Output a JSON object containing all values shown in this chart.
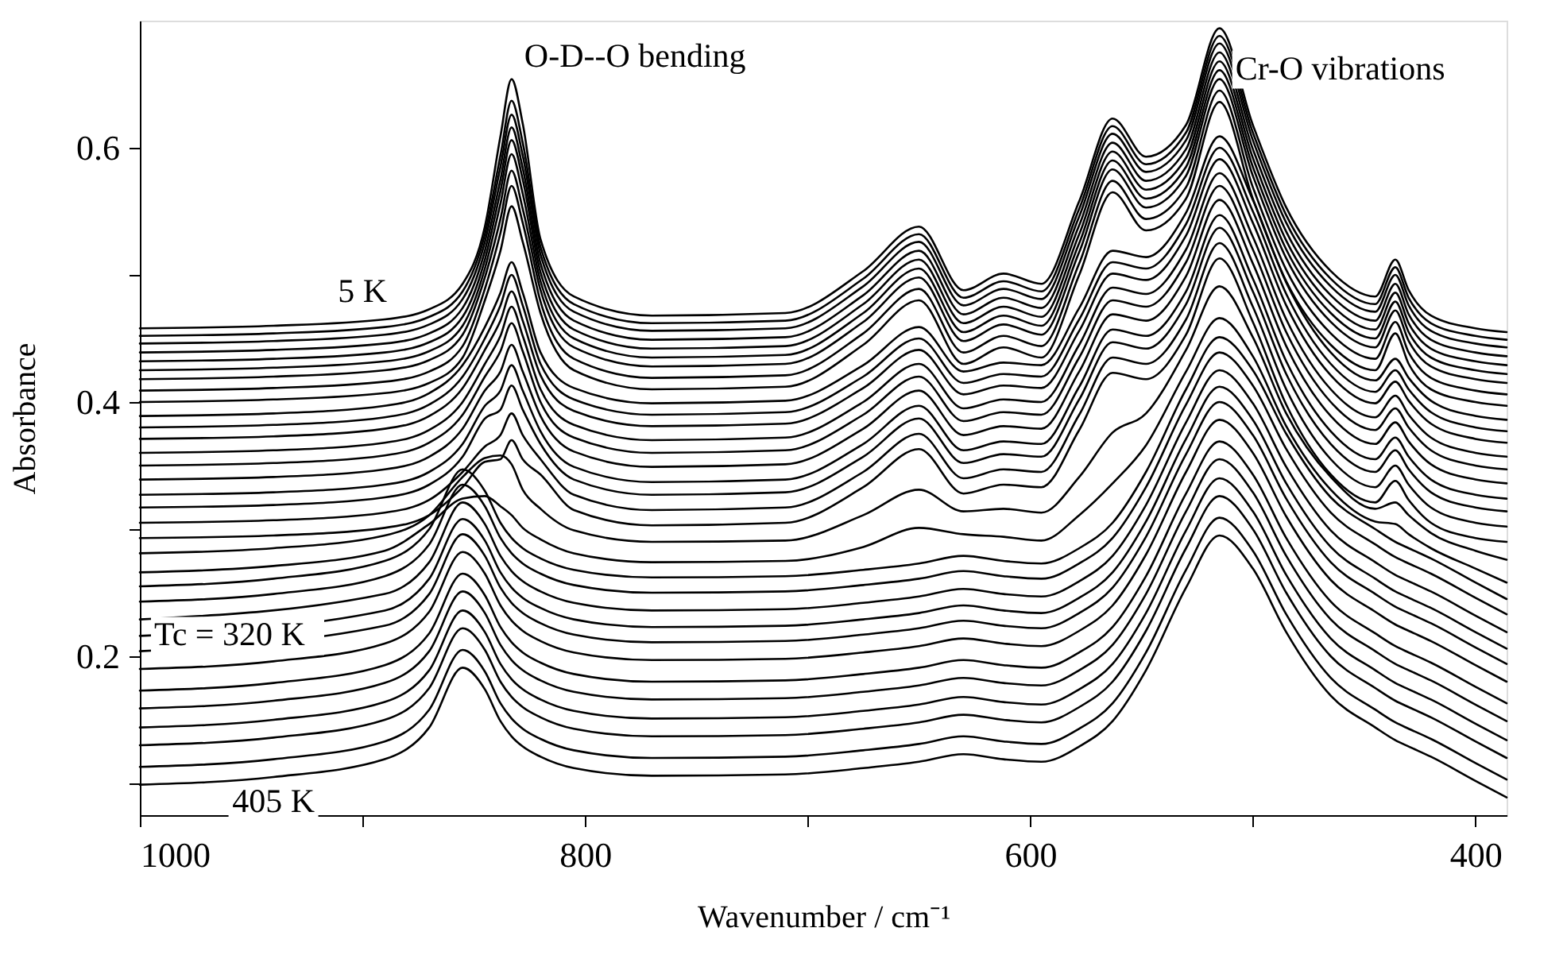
{
  "chart_data": {
    "type": "line",
    "xlabel": "Wavenumber / cm⁻¹",
    "ylabel": "Absorbance",
    "xlim": [
      1000,
      386
    ],
    "ylim": [
      0.075,
      0.7
    ],
    "xticks": [
      1000,
      {
        "value": 900,
        "label": null
      },
      800,
      {
        "value": 700,
        "label": null
      },
      600,
      {
        "value": 500,
        "label": null
      },
      400
    ],
    "yticks": [
      {
        "value": 0.1,
        "label": null
      },
      0.2,
      {
        "value": 0.3,
        "label": null
      },
      0.4,
      {
        "value": 0.5,
        "label": null
      },
      0.6
    ],
    "annotations": [
      {
        "text": "O-D--O bending",
        "x": 833,
        "y": 0.654
      },
      {
        "text": "Cr-O vibrations",
        "x": 515,
        "y": 0.694
      },
      {
        "text": "5 K",
        "x": 900,
        "y": 0.464
      },
      {
        "text": "Tc = 320 K",
        "x": 1000,
        "y": 0.216
      },
      {
        "text": "405 K",
        "x": 940,
        "y": 0.105
      }
    ],
    "x": [
      1000,
      940,
      890,
      870,
      855,
      845,
      838,
      833,
      828,
      820,
      805,
      770,
      710,
      675,
      650,
      630,
      612,
      595,
      578,
      563,
      548,
      530,
      515,
      500,
      485,
      465,
      445,
      436,
      430,
      420,
      400,
      386
    ],
    "series": [
      {
        "color": "#000000",
        "values": [
          0.458,
          0.46,
          0.465,
          0.473,
          0.493,
          0.538,
          0.609,
          0.654,
          0.619,
          0.528,
          0.483,
          0.468,
          0.47,
          0.503,
          0.538,
          0.488,
          0.501,
          0.493,
          0.558,
          0.623,
          0.593,
          0.618,
          0.694,
          0.618,
          0.553,
          0.503,
          0.483,
          0.512,
          0.488,
          0.468,
          0.458,
          0.455
        ]
      },
      {
        "color": "#000000",
        "values": [
          0.452,
          0.454,
          0.459,
          0.467,
          0.487,
          0.532,
          0.594,
          0.637,
          0.604,
          0.522,
          0.477,
          0.462,
          0.464,
          0.497,
          0.532,
          0.482,
          0.495,
          0.487,
          0.552,
          0.617,
          0.587,
          0.612,
          0.688,
          0.612,
          0.547,
          0.497,
          0.477,
          0.506,
          0.482,
          0.462,
          0.452,
          0.449
        ]
      },
      {
        "color": "#000000",
        "values": [
          0.446,
          0.448,
          0.453,
          0.461,
          0.481,
          0.526,
          0.585,
          0.626,
          0.594,
          0.516,
          0.471,
          0.456,
          0.458,
          0.491,
          0.526,
          0.476,
          0.489,
          0.481,
          0.546,
          0.611,
          0.581,
          0.606,
          0.682,
          0.606,
          0.541,
          0.491,
          0.471,
          0.5,
          0.476,
          0.456,
          0.446,
          0.443
        ]
      },
      {
        "color": "#000000",
        "values": [
          0.439,
          0.441,
          0.446,
          0.454,
          0.474,
          0.519,
          0.575,
          0.616,
          0.584,
          0.509,
          0.464,
          0.449,
          0.451,
          0.484,
          0.519,
          0.469,
          0.482,
          0.474,
          0.539,
          0.604,
          0.574,
          0.599,
          0.675,
          0.599,
          0.534,
          0.484,
          0.464,
          0.493,
          0.469,
          0.449,
          0.439,
          0.436
        ]
      },
      {
        "color": "#000000",
        "values": [
          0.432,
          0.434,
          0.439,
          0.447,
          0.467,
          0.512,
          0.566,
          0.606,
          0.575,
          0.502,
          0.457,
          0.442,
          0.444,
          0.477,
          0.512,
          0.462,
          0.475,
          0.467,
          0.532,
          0.597,
          0.567,
          0.592,
          0.668,
          0.592,
          0.527,
          0.477,
          0.457,
          0.486,
          0.462,
          0.442,
          0.432,
          0.429
        ]
      },
      {
        "color": "#000000",
        "values": [
          0.425,
          0.427,
          0.432,
          0.44,
          0.46,
          0.505,
          0.556,
          0.595,
          0.564,
          0.495,
          0.45,
          0.435,
          0.437,
          0.47,
          0.505,
          0.455,
          0.468,
          0.46,
          0.525,
          0.59,
          0.56,
          0.585,
          0.661,
          0.585,
          0.52,
          0.47,
          0.45,
          0.479,
          0.455,
          0.435,
          0.425,
          0.422
        ]
      },
      {
        "color": "#000000",
        "values": [
          0.418,
          0.42,
          0.425,
          0.433,
          0.453,
          0.498,
          0.544,
          0.582,
          0.552,
          0.488,
          0.443,
          0.428,
          0.43,
          0.463,
          0.498,
          0.448,
          0.461,
          0.453,
          0.518,
          0.583,
          0.553,
          0.578,
          0.654,
          0.578,
          0.513,
          0.463,
          0.443,
          0.472,
          0.448,
          0.428,
          0.418,
          0.415
        ]
      },
      {
        "color": "#000000",
        "values": [
          0.409,
          0.411,
          0.416,
          0.424,
          0.444,
          0.489,
          0.533,
          0.57,
          0.541,
          0.479,
          0.434,
          0.419,
          0.421,
          0.454,
          0.489,
          0.439,
          0.452,
          0.444,
          0.509,
          0.574,
          0.544,
          0.569,
          0.645,
          0.569,
          0.504,
          0.454,
          0.434,
          0.463,
          0.439,
          0.419,
          0.409,
          0.406
        ]
      },
      {
        "color": "#000000",
        "values": [
          0.4,
          0.402,
          0.407,
          0.415,
          0.435,
          0.48,
          0.519,
          0.554,
          0.526,
          0.47,
          0.425,
          0.41,
          0.412,
          0.445,
          0.48,
          0.43,
          0.443,
          0.435,
          0.5,
          0.565,
          0.535,
          0.56,
          0.636,
          0.56,
          0.495,
          0.445,
          0.425,
          0.454,
          0.43,
          0.41,
          0.4,
          0.397
        ]
      },
      {
        "color": "#000000",
        "values": [
          0.389,
          0.391,
          0.397,
          0.407,
          0.429,
          0.459,
          0.486,
          0.51,
          0.486,
          0.439,
          0.411,
          0.399,
          0.401,
          0.429,
          0.459,
          0.424,
          0.431,
          0.429,
          0.474,
          0.519,
          0.514,
          0.549,
          0.609,
          0.559,
          0.494,
          0.439,
          0.417,
          0.434,
          0.419,
          0.401,
          0.389,
          0.386
        ]
      },
      {
        "color": "#000000",
        "values": [
          0.38,
          0.382,
          0.388,
          0.398,
          0.42,
          0.45,
          0.476,
          0.5,
          0.476,
          0.43,
          0.402,
          0.39,
          0.392,
          0.42,
          0.45,
          0.415,
          0.422,
          0.42,
          0.465,
          0.51,
          0.505,
          0.54,
          0.6,
          0.55,
          0.485,
          0.43,
          0.408,
          0.425,
          0.41,
          0.392,
          0.38,
          0.377
        ]
      },
      {
        "color": "#000000",
        "values": [
          0.371,
          0.373,
          0.379,
          0.389,
          0.411,
          0.441,
          0.464,
          0.487,
          0.464,
          0.421,
          0.393,
          0.381,
          0.383,
          0.411,
          0.441,
          0.406,
          0.413,
          0.411,
          0.456,
          0.501,
          0.496,
          0.531,
          0.591,
          0.541,
          0.476,
          0.421,
          0.399,
          0.416,
          0.401,
          0.383,
          0.371,
          0.368
        ]
      },
      {
        "color": "#000000",
        "values": [
          0.36,
          0.362,
          0.368,
          0.378,
          0.4,
          0.43,
          0.452,
          0.475,
          0.452,
          0.41,
          0.382,
          0.37,
          0.372,
          0.4,
          0.43,
          0.395,
          0.402,
          0.4,
          0.445,
          0.49,
          0.485,
          0.52,
          0.58,
          0.53,
          0.465,
          0.41,
          0.388,
          0.405,
          0.39,
          0.372,
          0.36,
          0.357
        ]
      },
      {
        "color": "#000000",
        "values": [
          0.35,
          0.352,
          0.358,
          0.368,
          0.39,
          0.42,
          0.44,
          0.462,
          0.44,
          0.4,
          0.372,
          0.36,
          0.362,
          0.39,
          0.42,
          0.385,
          0.392,
          0.39,
          0.435,
          0.48,
          0.475,
          0.51,
          0.57,
          0.52,
          0.455,
          0.4,
          0.378,
          0.395,
          0.38,
          0.362,
          0.35,
          0.347
        ]
      },
      {
        "color": "#000000",
        "values": [
          0.339,
          0.341,
          0.347,
          0.357,
          0.379,
          0.409,
          0.424,
          0.445,
          0.424,
          0.389,
          0.361,
          0.349,
          0.351,
          0.379,
          0.409,
          0.374,
          0.381,
          0.379,
          0.424,
          0.469,
          0.464,
          0.499,
          0.559,
          0.509,
          0.444,
          0.389,
          0.367,
          0.384,
          0.369,
          0.351,
          0.339,
          0.336
        ]
      },
      {
        "color": "#000000",
        "values": [
          0.327,
          0.329,
          0.335,
          0.345,
          0.367,
          0.397,
          0.409,
          0.429,
          0.409,
          0.377,
          0.349,
          0.337,
          0.339,
          0.367,
          0.397,
          0.362,
          0.369,
          0.367,
          0.412,
          0.457,
          0.452,
          0.487,
          0.547,
          0.497,
          0.432,
          0.377,
          0.355,
          0.372,
          0.357,
          0.339,
          0.327,
          0.324
        ]
      },
      {
        "color": "#000000",
        "values": [
          0.317,
          0.319,
          0.325,
          0.335,
          0.357,
          0.387,
          0.394,
          0.413,
          0.394,
          0.367,
          0.339,
          0.327,
          0.329,
          0.357,
          0.387,
          0.352,
          0.359,
          0.357,
          0.402,
          0.447,
          0.442,
          0.477,
          0.537,
          0.487,
          0.422,
          0.367,
          0.345,
          0.362,
          0.347,
          0.329,
          0.317,
          0.314
        ]
      },
      {
        "color": "#000000",
        "values": [
          0.305,
          0.307,
          0.313,
          0.323,
          0.345,
          0.365,
          0.374,
          0.391,
          0.374,
          0.355,
          0.327,
          0.315,
          0.317,
          0.345,
          0.375,
          0.34,
          0.347,
          0.345,
          0.39,
          0.435,
          0.43,
          0.465,
          0.525,
          0.475,
          0.41,
          0.355,
          0.333,
          0.35,
          0.335,
          0.317,
          0.305,
          0.302
        ]
      },
      {
        "color": "#000000",
        "values": [
          0.293,
          0.295,
          0.301,
          0.311,
          0.333,
          0.353,
          0.355,
          0.37,
          0.355,
          0.343,
          0.315,
          0.303,
          0.305,
          0.333,
          0.363,
          0.328,
          0.335,
          0.333,
          0.378,
          0.423,
          0.418,
          0.453,
          0.513,
          0.463,
          0.398,
          0.343,
          0.321,
          0.338,
          0.323,
          0.305,
          0.293,
          0.29
        ]
      },
      {
        "color": "#000000",
        "values": [
          0.281,
          0.285,
          0.295,
          0.311,
          0.341,
          0.356,
          0.358,
          0.351,
          0.331,
          0.316,
          0.299,
          0.29,
          0.291,
          0.311,
          0.331,
          0.314,
          0.316,
          0.313,
          0.341,
          0.376,
          0.391,
          0.441,
          0.491,
          0.451,
          0.391,
          0.341,
          0.316,
          0.321,
          0.311,
          0.297,
          0.283,
          0.276
        ]
      },
      {
        "color": "#000000",
        "values": [
          0.266,
          0.271,
          0.283,
          0.304,
          0.324,
          0.326,
          0.318,
          0.311,
          0.301,
          0.292,
          0.281,
          0.274,
          0.275,
          0.286,
          0.301,
          0.296,
          0.294,
          0.291,
          0.311,
          0.336,
          0.366,
          0.424,
          0.466,
          0.436,
          0.381,
          0.331,
          0.306,
          0.304,
          0.296,
          0.285,
          0.269,
          0.258
        ]
      },
      {
        "color": "#000000",
        "values": [
          0.255,
          0.261,
          0.275,
          0.3,
          0.347,
          0.33,
          0.305,
          0.293,
          0.285,
          0.277,
          0.268,
          0.262,
          0.263,
          0.268,
          0.273,
          0.279,
          0.275,
          0.273,
          0.285,
          0.305,
          0.345,
          0.41,
          0.451,
          0.425,
          0.375,
          0.325,
          0.3,
          0.29,
          0.285,
          0.277,
          0.258,
          0.245
        ]
      },
      {
        "color": "#000000",
        "values": [
          0.243,
          0.249,
          0.263,
          0.288,
          0.335,
          0.318,
          0.293,
          0.281,
          0.273,
          0.265,
          0.256,
          0.25,
          0.251,
          0.256,
          0.261,
          0.267,
          0.263,
          0.261,
          0.273,
          0.293,
          0.333,
          0.398,
          0.439,
          0.413,
          0.363,
          0.313,
          0.288,
          0.278,
          0.273,
          0.265,
          0.246,
          0.233
        ]
      },
      {
        "color": "#000000",
        "x": [
          1000,
          890,
          870,
          855,
          845,
          838,
          833,
          828,
          820,
          805,
          770,
          710,
          675,
          650,
          630,
          612,
          595,
          578,
          563,
          548,
          530,
          515,
          500,
          485,
          465,
          445,
          436,
          430,
          420,
          400,
          386
        ],
        "values": [
          0.229,
          0.249,
          0.274,
          0.321,
          0.304,
          0.279,
          0.267,
          0.259,
          0.251,
          0.242,
          0.236,
          0.237,
          0.242,
          0.247,
          0.253,
          0.249,
          0.247,
          0.259,
          0.279,
          0.319,
          0.384,
          0.425,
          0.399,
          0.349,
          0.299,
          0.274,
          0.264,
          0.259,
          0.251,
          0.232,
          0.219
        ]
      },
      {
        "color": "#000000",
        "x": [
          1000,
          890,
          870,
          855,
          845,
          838,
          833,
          828,
          820,
          805,
          770,
          710,
          675,
          650,
          630,
          612,
          595,
          578,
          563,
          548,
          530,
          515,
          500,
          485,
          465,
          445,
          436,
          430,
          420,
          400,
          386
        ],
        "values": [
          0.216,
          0.236,
          0.261,
          0.308,
          0.291,
          0.266,
          0.254,
          0.246,
          0.238,
          0.229,
          0.223,
          0.224,
          0.229,
          0.234,
          0.24,
          0.236,
          0.234,
          0.246,
          0.266,
          0.306,
          0.371,
          0.412,
          0.386,
          0.336,
          0.286,
          0.261,
          0.251,
          0.246,
          0.238,
          0.219,
          0.206
        ]
      },
      {
        "color": "#000000",
        "x": [
          1000,
          890,
          870,
          855,
          845,
          838,
          833,
          828,
          820,
          805,
          770,
          710,
          675,
          650,
          630,
          612,
          595,
          578,
          563,
          548,
          530,
          515,
          500,
          485,
          465,
          445,
          436,
          430,
          420,
          400,
          386
        ],
        "values": [
          0.204,
          0.224,
          0.249,
          0.296,
          0.279,
          0.254,
          0.242,
          0.234,
          0.226,
          0.217,
          0.211,
          0.212,
          0.217,
          0.222,
          0.228,
          0.224,
          0.222,
          0.234,
          0.254,
          0.294,
          0.359,
          0.4,
          0.374,
          0.324,
          0.274,
          0.249,
          0.239,
          0.234,
          0.226,
          0.207,
          0.194
        ]
      },
      {
        "color": "#000000",
        "values": [
          0.19,
          0.196,
          0.21,
          0.235,
          0.282,
          0.265,
          0.24,
          0.228,
          0.22,
          0.212,
          0.203,
          0.197,
          0.198,
          0.203,
          0.208,
          0.214,
          0.21,
          0.208,
          0.22,
          0.24,
          0.28,
          0.345,
          0.386,
          0.36,
          0.31,
          0.26,
          0.235,
          0.225,
          0.22,
          0.212,
          0.193,
          0.18
        ]
      },
      {
        "color": "#000000",
        "values": [
          0.173,
          0.179,
          0.193,
          0.218,
          0.265,
          0.248,
          0.223,
          0.211,
          0.203,
          0.195,
          0.186,
          0.18,
          0.181,
          0.186,
          0.191,
          0.197,
          0.193,
          0.191,
          0.203,
          0.223,
          0.263,
          0.328,
          0.369,
          0.343,
          0.293,
          0.243,
          0.218,
          0.208,
          0.203,
          0.195,
          0.176,
          0.163
        ]
      },
      {
        "color": "#000000",
        "values": [
          0.159,
          0.165,
          0.179,
          0.204,
          0.251,
          0.234,
          0.209,
          0.197,
          0.189,
          0.181,
          0.172,
          0.166,
          0.167,
          0.172,
          0.177,
          0.183,
          0.179,
          0.177,
          0.189,
          0.209,
          0.249,
          0.314,
          0.355,
          0.329,
          0.279,
          0.229,
          0.204,
          0.194,
          0.189,
          0.181,
          0.162,
          0.149
        ]
      },
      {
        "color": "#000000",
        "values": [
          0.144,
          0.15,
          0.164,
          0.189,
          0.236,
          0.219,
          0.194,
          0.182,
          0.174,
          0.166,
          0.157,
          0.151,
          0.152,
          0.157,
          0.162,
          0.168,
          0.164,
          0.162,
          0.174,
          0.194,
          0.234,
          0.299,
          0.34,
          0.314,
          0.264,
          0.214,
          0.189,
          0.179,
          0.174,
          0.166,
          0.147,
          0.134
        ]
      },
      {
        "color": "#000000",
        "values": [
          0.13,
          0.136,
          0.15,
          0.175,
          0.222,
          0.205,
          0.18,
          0.168,
          0.16,
          0.152,
          0.143,
          0.137,
          0.138,
          0.143,
          0.148,
          0.154,
          0.15,
          0.148,
          0.16,
          0.18,
          0.22,
          0.285,
          0.326,
          0.3,
          0.25,
          0.2,
          0.175,
          0.165,
          0.16,
          0.152,
          0.133,
          0.12
        ]
      },
      {
        "color": "#000000",
        "values": [
          0.113,
          0.119,
          0.133,
          0.158,
          0.205,
          0.188,
          0.163,
          0.151,
          0.143,
          0.135,
          0.126,
          0.12,
          0.121,
          0.126,
          0.131,
          0.137,
          0.133,
          0.131,
          0.143,
          0.163,
          0.203,
          0.268,
          0.309,
          0.283,
          0.233,
          0.183,
          0.158,
          0.148,
          0.143,
          0.135,
          0.116,
          0.103
        ]
      },
      {
        "color": "#000000",
        "values": [
          0.099,
          0.105,
          0.119,
          0.144,
          0.191,
          0.174,
          0.149,
          0.137,
          0.129,
          0.121,
          0.112,
          0.106,
          0.107,
          0.112,
          0.117,
          0.123,
          0.119,
          0.117,
          0.129,
          0.149,
          0.189,
          0.254,
          0.295,
          0.269,
          0.219,
          0.169,
          0.144,
          0.134,
          0.129,
          0.121,
          0.102,
          0.089
        ]
      }
    ]
  }
}
